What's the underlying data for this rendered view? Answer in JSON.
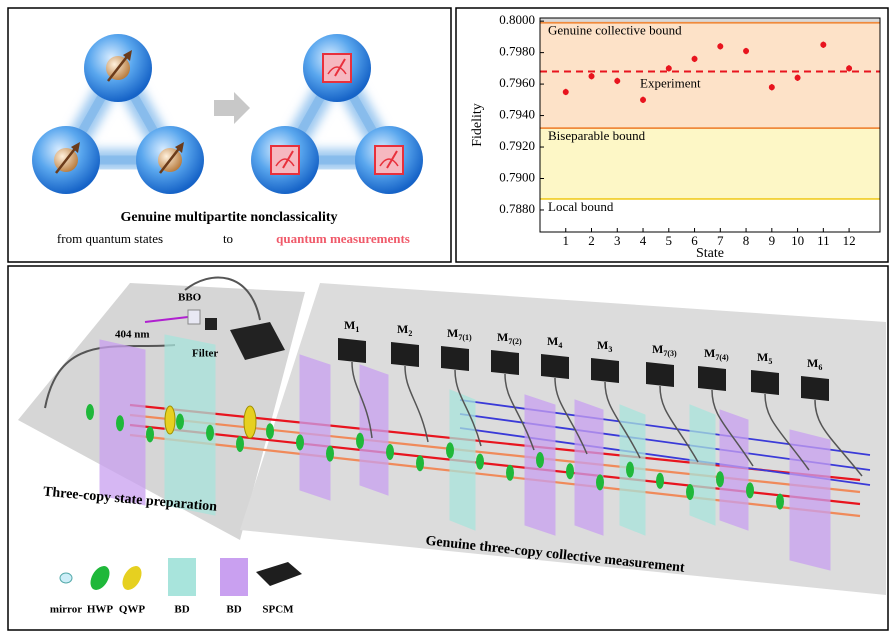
{
  "panel_a": {
    "title": "Genuine multipartite nonclassicality",
    "from_text": "from quantum states",
    "to_text": "to",
    "to_highlight": "quantum measurements"
  },
  "chart_data": {
    "type": "scatter",
    "xlabel": "State",
    "ylabel": "Fidelity",
    "x": [
      1,
      2,
      3,
      4,
      5,
      6,
      7,
      8,
      9,
      10,
      11,
      12
    ],
    "xlim": [
      0,
      13.2
    ],
    "xticks": [
      1,
      2,
      3,
      4,
      5,
      6,
      7,
      8,
      9,
      10,
      11,
      12
    ],
    "series": [
      {
        "name": "Experiment",
        "color": "#e8141e",
        "mean": 0.7968,
        "values": [
          0.7955,
          0.7965,
          0.7962,
          0.795,
          0.797,
          0.7976,
          0.7984,
          0.7981,
          0.7958,
          0.7964,
          0.7985,
          0.797
        ],
        "errors": [
          0.0002,
          0.0002,
          0.0002,
          0.0002,
          0.0002,
          0.0002,
          0.0002,
          0.0002,
          0.0002,
          0.0002,
          0.0002,
          0.0002
        ]
      }
    ],
    "bounds": [
      {
        "label": "Genuine collective bound",
        "value": 0.7999,
        "color": "#f08a3c"
      },
      {
        "label": "Biseparable bound",
        "value": 0.7932,
        "color": "#f08a3c"
      },
      {
        "label": "Local bound",
        "value": 0.7887,
        "color": "#f2d23c"
      }
    ],
    "ylim": [
      0.7866,
      0.8002
    ],
    "yticks": [
      {
        "value": 0.8,
        "label": "0.8000"
      },
      {
        "value": 0.798,
        "label": "0.7980"
      },
      {
        "value": 0.796,
        "label": "0.7960"
      },
      {
        "value": 0.794,
        "label": "0.7940"
      },
      {
        "value": 0.792,
        "label": "0.7920"
      },
      {
        "value": 0.79,
        "label": "0.7900"
      },
      {
        "value": 0.788,
        "label": "0.7880"
      }
    ],
    "grid": false
  },
  "panel_c": {
    "source": {
      "crystal": "BBO",
      "wavelength": "404 nm",
      "filter": "Filter"
    },
    "detectors": [
      {
        "name": "M",
        "sub": "1"
      },
      {
        "name": "M",
        "sub": "2"
      },
      {
        "name": "M",
        "sub": "7(1)"
      },
      {
        "name": "M",
        "sub": "7(2)"
      },
      {
        "name": "M",
        "sub": "4"
      },
      {
        "name": "M",
        "sub": "3"
      },
      {
        "name": "M",
        "sub": "7(3)"
      },
      {
        "name": "M",
        "sub": "7(4)"
      },
      {
        "name": "M",
        "sub": "5"
      },
      {
        "name": "M",
        "sub": "6"
      }
    ],
    "prep_label": "Three-copy state preparation",
    "measure_label": "Genuine three-copy collective measurement",
    "legend": [
      "mirror",
      "HWP",
      "QWP",
      "BD",
      "BD",
      "SPCM"
    ]
  }
}
